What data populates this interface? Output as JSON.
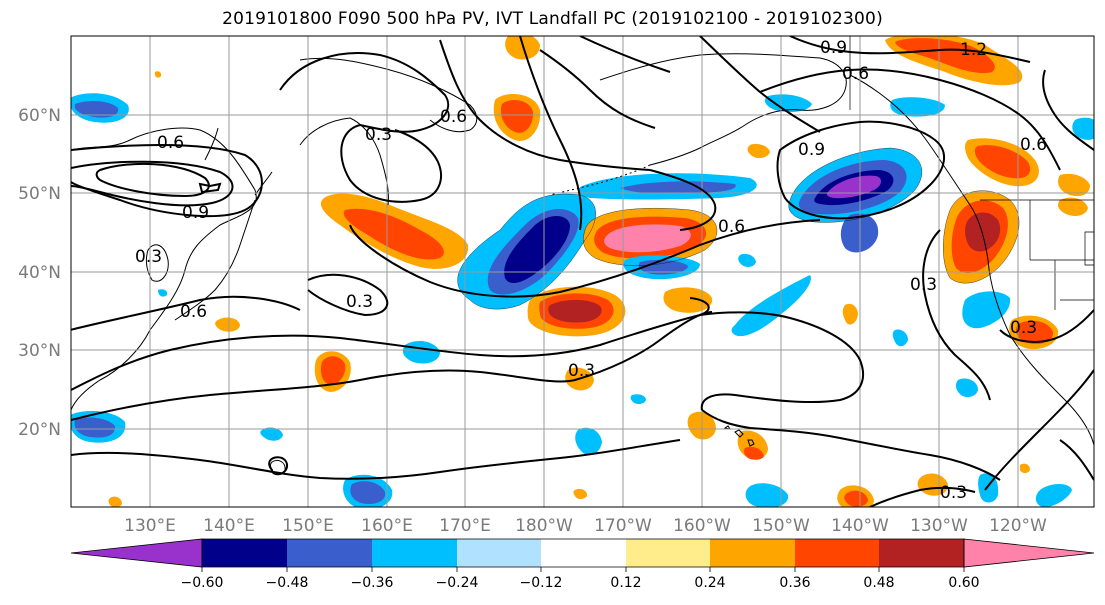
{
  "title": "2019101800 F090 500 hPa PV, IVT Landfall PC (2019102100 - 2019102300)",
  "lat_ticks": [
    "60°N",
    "50°N",
    "40°N",
    "30°N",
    "20°N"
  ],
  "lon_ticks": [
    "130°E",
    "140°E",
    "150°E",
    "160°E",
    "170°E",
    "180°W",
    "170°W",
    "160°W",
    "150°W",
    "140°W",
    "130°W",
    "120°W"
  ],
  "colorbar": {
    "tick_labels": [
      "−0.60",
      "−0.48",
      "−0.36",
      "−0.24",
      "−0.12",
      "0.12",
      "0.24",
      "0.36",
      "0.48",
      "0.60"
    ],
    "colors": [
      "#9932cc",
      "#00008b",
      "#3a5fcd",
      "#00bfff",
      "#b0e2ff",
      "#ffffff",
      "#ffec8b",
      "#ffa500",
      "#ff4500",
      "#b22222",
      "#ff82ab"
    ]
  },
  "contour_labels": [
    "0.9",
    "0.6",
    "1.2",
    "0.6",
    "0.3",
    "0.6",
    "0.9",
    "0.9",
    "0.6",
    "0.3",
    "0.6",
    "0.3",
    "0.3",
    "0.3",
    "0.3",
    "0.3",
    "0.6"
  ]
}
